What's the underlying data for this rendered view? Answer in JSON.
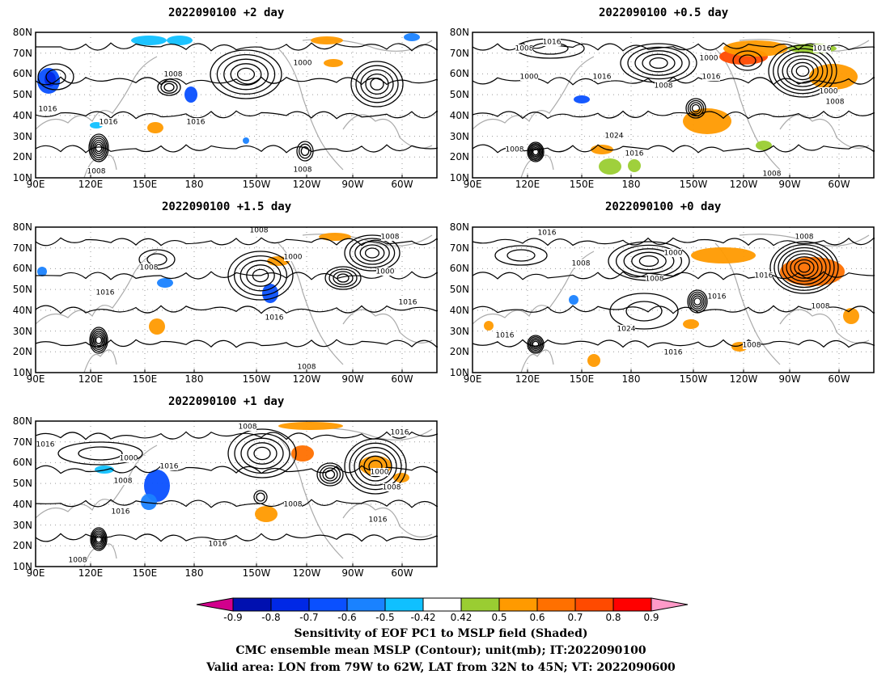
{
  "panels": [
    {
      "title": "2022090100 +2 day"
    },
    {
      "title": "2022090100 +0.5 day"
    },
    {
      "title": "2022090100 +1.5 day"
    },
    {
      "title": "2022090100 +0 day"
    },
    {
      "title": "2022090100 +1 day"
    }
  ],
  "axes": {
    "lat_labels": [
      "80N",
      "70N",
      "60N",
      "50N",
      "40N",
      "30N",
      "20N",
      "10N"
    ],
    "lon_labels": [
      "90E",
      "120E",
      "150E",
      "180",
      "150W",
      "120W",
      "90W",
      "60W"
    ]
  },
  "contour_labels": {
    "p0": [
      "1000",
      "1008",
      "1016",
      "1016",
      "1016",
      "1008",
      "1008"
    ],
    "p1": [
      "1016",
      "1008",
      "1000",
      "1000",
      "1016",
      "1016",
      "1008",
      "1016",
      "1024",
      "1016",
      "1008",
      "1008",
      "1000",
      "1008"
    ],
    "p2": [
      "1008",
      "1008",
      "1000",
      "1008",
      "1016",
      "1016",
      "1000",
      "1016",
      "1008"
    ],
    "p3": [
      "1016",
      "1008",
      "1000",
      "1008",
      "1016",
      "1008",
      "1016",
      "1024",
      "1016",
      "1016",
      "1008",
      "1008"
    ],
    "p4": [
      "1008",
      "1016",
      "1000",
      "1016",
      "1008",
      "1016",
      "1016",
      "1016",
      "1008",
      "1008",
      "1000",
      "1008",
      "1016"
    ]
  },
  "colorbar": {
    "labels": [
      "-0.9",
      "-0.8",
      "-0.7",
      "-0.6",
      "-0.5",
      "-0.42",
      "0.42",
      "0.5",
      "0.6",
      "0.7",
      "0.8",
      "0.9"
    ],
    "colors": [
      "#d2008c",
      "#0010b0",
      "#0028e6",
      "#0a50ff",
      "#1a82ff",
      "#10c0ff",
      "#ffffff",
      "#9acd32",
      "#ff9a00",
      "#ff7000",
      "#ff4a00",
      "#ff0000",
      "#ff9ac8"
    ]
  },
  "caption": {
    "line1": "Sensitivity of EOF PC1 to MSLP field (Shaded)",
    "line2": "CMC ensemble mean MSLP (Contour); unit(mb); IT:2022090100",
    "line3": "Valid area: LON from 79W to 62W, LAT from 32N to 45N; VT: 2022090600"
  }
}
